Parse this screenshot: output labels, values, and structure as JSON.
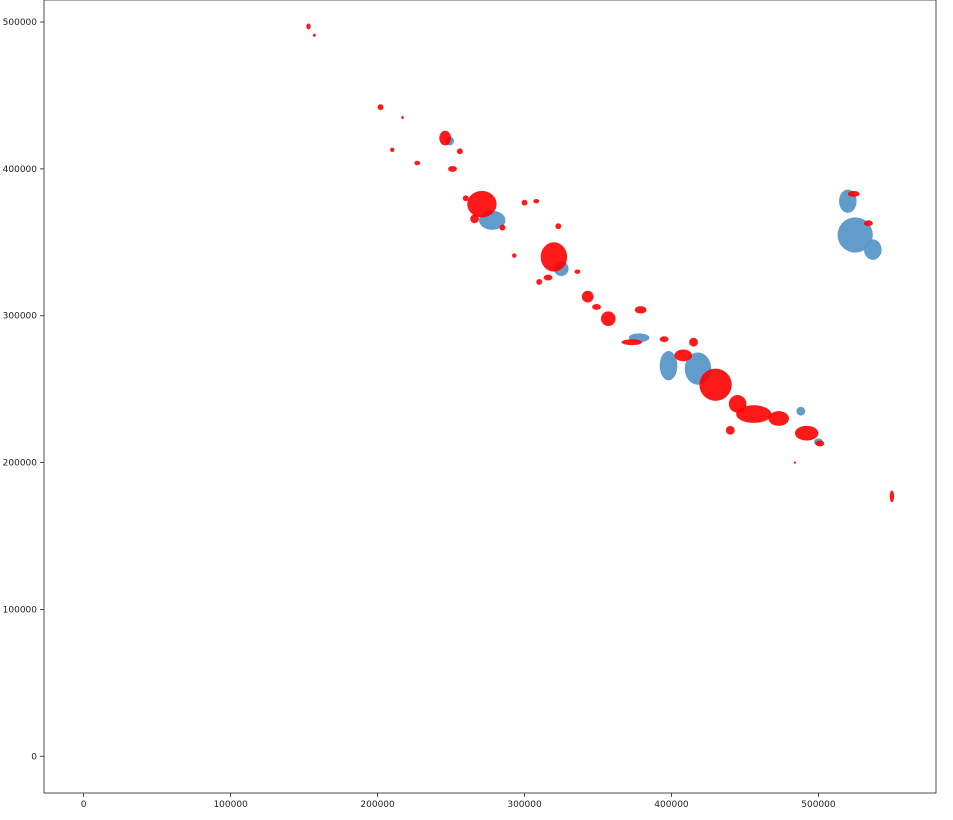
{
  "chart_data": {
    "type": "map",
    "title": "",
    "xlabel": "",
    "ylabel": "",
    "xlim": [
      -27000,
      580000
    ],
    "ylim": [
      -25000,
      515000
    ],
    "x_ticks": [
      0,
      100000,
      200000,
      300000,
      400000,
      500000
    ],
    "x_tick_labels": [
      "0",
      "100000",
      "200000",
      "300000",
      "400000",
      "500000"
    ],
    "y_ticks": [
      0,
      100000,
      200000,
      300000,
      400000,
      500000
    ],
    "y_tick_labels": [
      "0",
      "100000",
      "200000",
      "300000",
      "400000",
      "500000"
    ],
    "grid": false,
    "colors": {
      "layer_a": "#5a97c8",
      "layer_b": "#ff0000"
    },
    "series": [
      {
        "color": "#5a97c8",
        "patches": [
          {
            "x": 278000,
            "y": 365000,
            "rx": 9000,
            "ry": 6500
          },
          {
            "x": 325000,
            "y": 332000,
            "rx": 5000,
            "ry": 5000
          },
          {
            "x": 398000,
            "y": 266000,
            "rx": 6000,
            "ry": 10000
          },
          {
            "x": 418000,
            "y": 264000,
            "rx": 9000,
            "ry": 11000
          },
          {
            "x": 378000,
            "y": 285000,
            "rx": 7000,
            "ry": 3000
          },
          {
            "x": 525000,
            "y": 355000,
            "rx": 12000,
            "ry": 12000
          },
          {
            "x": 520000,
            "y": 378000,
            "rx": 6000,
            "ry": 8000
          },
          {
            "x": 537000,
            "y": 345000,
            "rx": 6000,
            "ry": 7000
          },
          {
            "x": 488000,
            "y": 235000,
            "rx": 3000,
            "ry": 3000
          },
          {
            "x": 500000,
            "y": 214000,
            "rx": 3000,
            "ry": 2500
          },
          {
            "x": 249000,
            "y": 419000,
            "rx": 3000,
            "ry": 3000
          }
        ]
      },
      {
        "color": "#ff0000",
        "patches": [
          {
            "x": 153000,
            "y": 497000,
            "rx": 1500,
            "ry": 2000
          },
          {
            "x": 157000,
            "y": 491000,
            "rx": 1000,
            "ry": 1000
          },
          {
            "x": 202000,
            "y": 442000,
            "rx": 2000,
            "ry": 2000
          },
          {
            "x": 217000,
            "y": 435000,
            "rx": 800,
            "ry": 1200
          },
          {
            "x": 246000,
            "y": 421000,
            "rx": 4000,
            "ry": 5000
          },
          {
            "x": 210000,
            "y": 413000,
            "rx": 1500,
            "ry": 1500
          },
          {
            "x": 256000,
            "y": 412000,
            "rx": 2000,
            "ry": 2000
          },
          {
            "x": 227000,
            "y": 404000,
            "rx": 2000,
            "ry": 1500
          },
          {
            "x": 251000,
            "y": 400000,
            "rx": 3000,
            "ry": 2000
          },
          {
            "x": 271000,
            "y": 376000,
            "rx": 10000,
            "ry": 9000
          },
          {
            "x": 266000,
            "y": 366000,
            "rx": 3000,
            "ry": 3000
          },
          {
            "x": 285000,
            "y": 360000,
            "rx": 2000,
            "ry": 2000
          },
          {
            "x": 300000,
            "y": 377000,
            "rx": 2000,
            "ry": 2000
          },
          {
            "x": 308000,
            "y": 378000,
            "rx": 2000,
            "ry": 1500
          },
          {
            "x": 320000,
            "y": 340000,
            "rx": 9000,
            "ry": 10000
          },
          {
            "x": 316000,
            "y": 326000,
            "rx": 3000,
            "ry": 2000
          },
          {
            "x": 323000,
            "y": 361000,
            "rx": 2000,
            "ry": 2000
          },
          {
            "x": 343000,
            "y": 313000,
            "rx": 4000,
            "ry": 4000
          },
          {
            "x": 349000,
            "y": 306000,
            "rx": 3000,
            "ry": 2000
          },
          {
            "x": 357000,
            "y": 298000,
            "rx": 5000,
            "ry": 5000
          },
          {
            "x": 373000,
            "y": 282000,
            "rx": 7000,
            "ry": 2000
          },
          {
            "x": 379000,
            "y": 304000,
            "rx": 4000,
            "ry": 2500
          },
          {
            "x": 395000,
            "y": 284000,
            "rx": 3000,
            "ry": 2000
          },
          {
            "x": 408000,
            "y": 273000,
            "rx": 6000,
            "ry": 4000
          },
          {
            "x": 415000,
            "y": 282000,
            "rx": 3000,
            "ry": 3000
          },
          {
            "x": 430000,
            "y": 253000,
            "rx": 11000,
            "ry": 11000
          },
          {
            "x": 445000,
            "y": 240000,
            "rx": 6000,
            "ry": 6000
          },
          {
            "x": 456000,
            "y": 233000,
            "rx": 12000,
            "ry": 6000
          },
          {
            "x": 473000,
            "y": 230000,
            "rx": 7000,
            "ry": 5000
          },
          {
            "x": 492000,
            "y": 220000,
            "rx": 8000,
            "ry": 5000
          },
          {
            "x": 501000,
            "y": 213000,
            "rx": 3000,
            "ry": 2000
          },
          {
            "x": 550000,
            "y": 177000,
            "rx": 1500,
            "ry": 4000
          },
          {
            "x": 524000,
            "y": 383000,
            "rx": 4000,
            "ry": 2000
          },
          {
            "x": 534000,
            "y": 363000,
            "rx": 3000,
            "ry": 2000
          },
          {
            "x": 484000,
            "y": 200000,
            "rx": 800,
            "ry": 800
          },
          {
            "x": 293000,
            "y": 341000,
            "rx": 1500,
            "ry": 1500
          },
          {
            "x": 310000,
            "y": 323000,
            "rx": 2000,
            "ry": 2000
          },
          {
            "x": 336000,
            "y": 330000,
            "rx": 2000,
            "ry": 1500
          },
          {
            "x": 440000,
            "y": 222000,
            "rx": 3000,
            "ry": 3000
          },
          {
            "x": 260000,
            "y": 380000,
            "rx": 2000,
            "ry": 2000
          }
        ]
      }
    ]
  }
}
